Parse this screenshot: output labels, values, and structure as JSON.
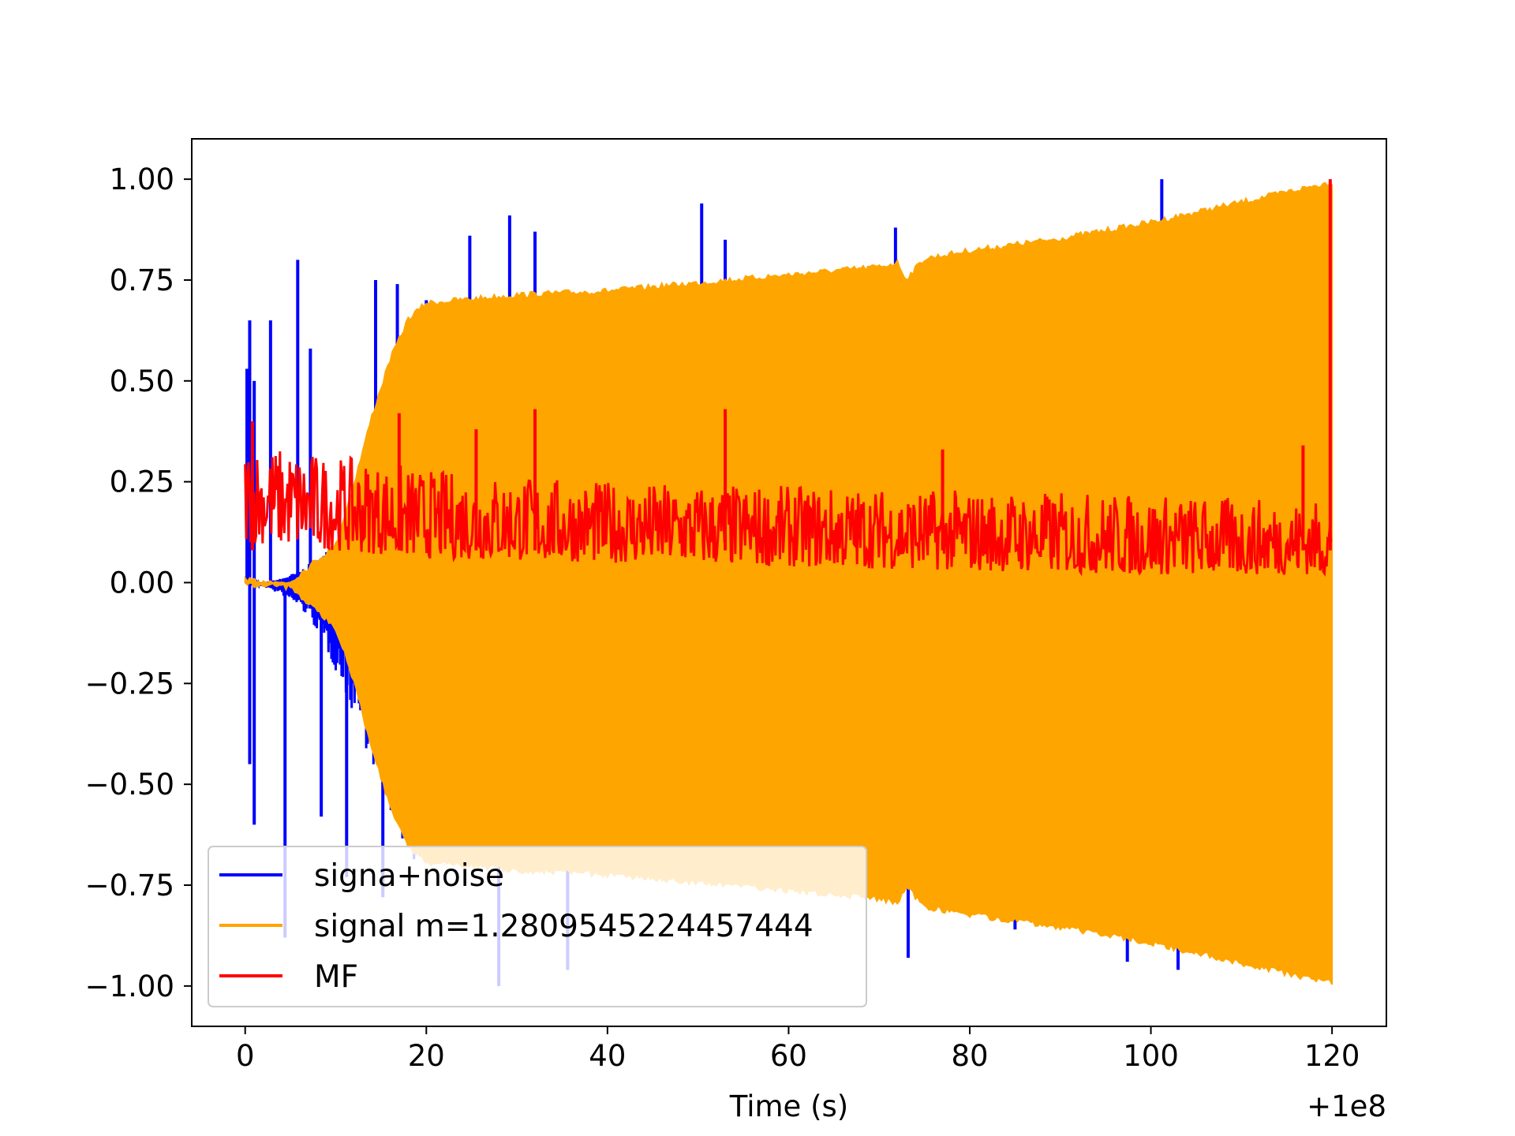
{
  "chart_data": {
    "type": "line",
    "title": "",
    "xlabel": "Time (s)",
    "ylabel": "",
    "x_offset_label": "+1e8",
    "xlim": [
      -5.9,
      126
    ],
    "ylim": [
      -1.1,
      1.1
    ],
    "xticks": [
      0,
      20,
      40,
      60,
      80,
      100,
      120
    ],
    "xtick_labels": [
      "0",
      "20",
      "40",
      "60",
      "80",
      "100",
      "120"
    ],
    "yticks": [
      -1.0,
      -0.75,
      -0.5,
      -0.25,
      0.0,
      0.25,
      0.5,
      0.75,
      1.0
    ],
    "ytick_labels": [
      "−1.00",
      "−0.75",
      "−0.50",
      "−0.25",
      "0.00",
      "0.25",
      "0.50",
      "0.75",
      "1.00"
    ],
    "grid": false,
    "legend_position": "lower-left",
    "series": [
      {
        "name": "signa+noise",
        "color": "#0000ff",
        "x_range": [
          0,
          120
        ],
        "envelope": {
          "x": [
            0,
            2,
            4,
            6,
            8,
            10,
            12,
            14,
            16,
            18,
            20
          ],
          "upper": [
            0.0,
            0.0,
            0.01,
            0.03,
            0.06,
            0.1,
            0.18,
            0.3,
            0.45,
            0.6,
            0.68
          ],
          "lower": [
            0.0,
            -0.01,
            -0.03,
            -0.06,
            -0.12,
            -0.22,
            -0.33,
            -0.45,
            -0.58,
            -0.68,
            -0.72
          ]
        },
        "spikes": [
          {
            "x": 0.2,
            "y": 0.53
          },
          {
            "x": 0.5,
            "y": 0.65
          },
          {
            "x": 1.0,
            "y": 0.5
          },
          {
            "x": 2.8,
            "y": 0.65
          },
          {
            "x": 5.8,
            "y": 0.8
          },
          {
            "x": 7.2,
            "y": 0.58
          },
          {
            "x": 14.4,
            "y": 0.75
          },
          {
            "x": 16.8,
            "y": 0.74
          },
          {
            "x": 20.0,
            "y": 0.7
          },
          {
            "x": 24.8,
            "y": 0.86
          },
          {
            "x": 29.2,
            "y": 0.91
          },
          {
            "x": 32.0,
            "y": 0.87
          },
          {
            "x": 50.4,
            "y": 0.94
          },
          {
            "x": 53.0,
            "y": 0.85
          },
          {
            "x": 71.8,
            "y": 0.88
          },
          {
            "x": 101.2,
            "y": 1.0
          },
          {
            "x": 0.5,
            "y": -0.45
          },
          {
            "x": 1.0,
            "y": -0.6
          },
          {
            "x": 4.4,
            "y": -0.88
          },
          {
            "x": 8.4,
            "y": -0.58
          },
          {
            "x": 11.2,
            "y": -0.73
          },
          {
            "x": 15.2,
            "y": -0.78
          },
          {
            "x": 28.0,
            "y": -1.0
          },
          {
            "x": 35.6,
            "y": -0.96
          },
          {
            "x": 73.2,
            "y": -0.93
          },
          {
            "x": 85.0,
            "y": -0.86
          },
          {
            "x": 97.4,
            "y": -0.94
          },
          {
            "x": 103.0,
            "y": -0.96
          }
        ]
      },
      {
        "name": "signal m=1.2809545224457444",
        "color": "#ffa500",
        "x_range": [
          0,
          120
        ],
        "envelope": {
          "x": [
            0,
            5,
            10,
            12,
            14,
            16,
            18,
            20,
            25,
            30,
            40,
            50,
            60,
            70,
            72,
            73,
            75,
            80,
            90,
            100,
            110,
            120
          ],
          "upper": [
            0.0,
            0.01,
            0.1,
            0.25,
            0.42,
            0.56,
            0.66,
            0.7,
            0.71,
            0.72,
            0.73,
            0.75,
            0.77,
            0.79,
            0.8,
            0.76,
            0.81,
            0.83,
            0.86,
            0.9,
            0.95,
            1.0
          ],
          "lower": [
            0.0,
            -0.02,
            -0.12,
            -0.25,
            -0.42,
            -0.56,
            -0.66,
            -0.7,
            -0.71,
            -0.72,
            -0.73,
            -0.75,
            -0.77,
            -0.79,
            -0.8,
            -0.76,
            -0.81,
            -0.83,
            -0.86,
            -0.9,
            -0.95,
            -1.0
          ]
        }
      },
      {
        "name": "MF",
        "color": "#ff0000",
        "x_range": [
          0,
          120
        ],
        "baseline": {
          "x": [
            0,
            20,
            40,
            60,
            80,
            100,
            120
          ],
          "low": [
            0.1,
            0.06,
            0.05,
            0.04,
            0.03,
            0.02,
            0.02
          ],
          "high": [
            0.35,
            0.28,
            0.25,
            0.24,
            0.23,
            0.22,
            0.2
          ]
        },
        "spikes": [
          {
            "x": 0.8,
            "y": 0.4
          },
          {
            "x": 17.0,
            "y": 0.42
          },
          {
            "x": 25.5,
            "y": 0.38
          },
          {
            "x": 32.0,
            "y": 0.43
          },
          {
            "x": 53.0,
            "y": 0.43
          },
          {
            "x": 77.0,
            "y": 0.33
          },
          {
            "x": 116.8,
            "y": 0.34
          },
          {
            "x": 119.8,
            "y": 1.0
          }
        ]
      }
    ]
  }
}
